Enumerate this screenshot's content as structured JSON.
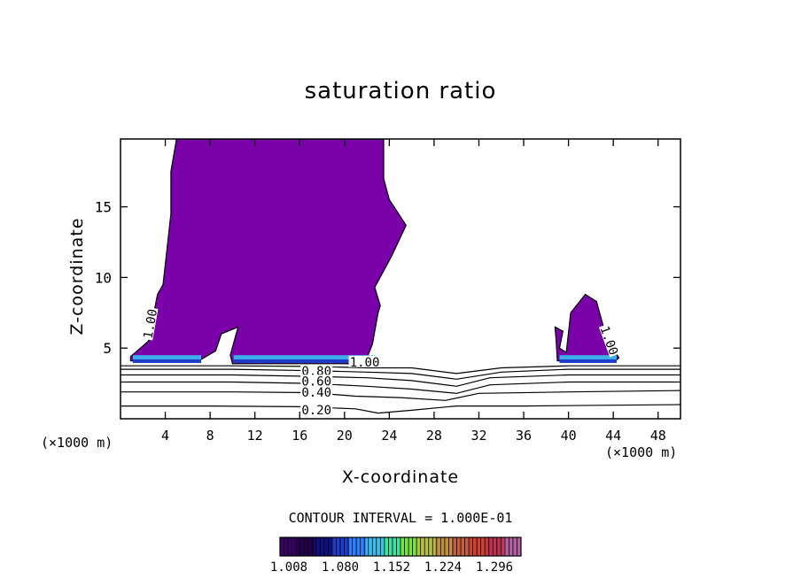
{
  "chart_data": {
    "type": "contour",
    "title": "saturation ratio",
    "xlabel": "X-coordinate",
    "ylabel": "Z-coordinate",
    "x_unit": "(×1000 m)",
    "xlim": [
      0,
      50
    ],
    "ylim": [
      0,
      19.8
    ],
    "x_ticks": [
      4,
      8,
      12,
      16,
      20,
      24,
      28,
      32,
      36,
      40,
      44,
      48
    ],
    "y_ticks": [
      5,
      10,
      15
    ],
    "contour_interval_label": "CONTOUR INTERVAL = 1.000E-01",
    "contour_labels": [
      "1.00",
      "1.00",
      "1.00",
      "0.80",
      "0.60",
      "0.40",
      "0.20"
    ],
    "contour_lines": [
      {
        "label": "0.20",
        "points": [
          [
            0,
            0.9
          ],
          [
            8,
            0.9
          ],
          [
            16,
            0.85
          ],
          [
            21,
            0.7
          ],
          [
            23,
            0.4
          ],
          [
            26,
            0.6
          ],
          [
            30,
            0.9
          ],
          [
            36,
            0.9
          ],
          [
            50,
            1.0
          ]
        ]
      },
      {
        "label": "0.40",
        "points": [
          [
            0,
            1.9
          ],
          [
            10,
            1.9
          ],
          [
            17,
            1.85
          ],
          [
            21,
            1.6
          ],
          [
            25,
            1.5
          ],
          [
            29,
            1.3
          ],
          [
            32,
            1.8
          ],
          [
            40,
            1.9
          ],
          [
            50,
            2.0
          ]
        ]
      },
      {
        "label": "0.60",
        "points": [
          [
            0,
            2.6
          ],
          [
            10,
            2.6
          ],
          [
            17,
            2.5
          ],
          [
            22,
            2.3
          ],
          [
            26,
            2.1
          ],
          [
            30,
            1.8
          ],
          [
            33,
            2.4
          ],
          [
            40,
            2.6
          ],
          [
            50,
            2.6
          ]
        ]
      },
      {
        "label": "0.80",
        "points": [
          [
            0,
            3.1
          ],
          [
            10,
            3.1
          ],
          [
            17,
            3.0
          ],
          [
            22,
            2.9
          ],
          [
            26,
            2.7
          ],
          [
            30,
            2.3
          ],
          [
            33,
            2.9
          ],
          [
            40,
            3.1
          ],
          [
            50,
            3.1
          ]
        ]
      },
      {
        "label": "",
        "points": [
          [
            0,
            3.5
          ],
          [
            10,
            3.5
          ],
          [
            17,
            3.4
          ],
          [
            22,
            3.3
          ],
          [
            26,
            3.2
          ],
          [
            30,
            2.8
          ],
          [
            34,
            3.3
          ],
          [
            40,
            3.5
          ],
          [
            50,
            3.5
          ]
        ]
      },
      {
        "label": "",
        "points": [
          [
            0,
            3.75
          ],
          [
            10,
            3.75
          ],
          [
            17,
            3.7
          ],
          [
            22,
            3.6
          ],
          [
            26,
            3.6
          ],
          [
            30,
            3.2
          ],
          [
            34,
            3.6
          ],
          [
            40,
            3.75
          ],
          [
            50,
            3.75
          ]
        ]
      }
    ],
    "regions": [
      {
        "level": "1.00",
        "points": [
          [
            0.9,
            4.1
          ],
          [
            0.9,
            4.4
          ],
          [
            2.5,
            5.5
          ],
          [
            3.3,
            8.8
          ],
          [
            3.8,
            9.5
          ],
          [
            4.5,
            14.5
          ],
          [
            4.5,
            17.5
          ],
          [
            5.0,
            19.8
          ],
          [
            23.5,
            19.8
          ],
          [
            23.5,
            17.0
          ],
          [
            24.0,
            15.5
          ],
          [
            25.5,
            13.7
          ],
          [
            24.2,
            11.5
          ],
          [
            22.7,
            9.3
          ],
          [
            23.2,
            8.0
          ],
          [
            23.0,
            7.5
          ],
          [
            22.5,
            5.3
          ],
          [
            22.0,
            4.3
          ],
          [
            23.0,
            3.9
          ],
          [
            21.5,
            3.85
          ],
          [
            20.0,
            3.9
          ],
          [
            17.0,
            3.9
          ],
          [
            14.0,
            3.9
          ],
          [
            10.0,
            3.9
          ],
          [
            9.8,
            4.5
          ],
          [
            10.5,
            6.5
          ],
          [
            9.0,
            6.0
          ],
          [
            8.5,
            4.8
          ],
          [
            7.2,
            4.2
          ],
          [
            4.0,
            4.0
          ],
          [
            0.9,
            4.1
          ]
        ]
      },
      {
        "level": "1.00",
        "points": [
          [
            39.0,
            4.1
          ],
          [
            38.9,
            5.5
          ],
          [
            38.8,
            6.5
          ],
          [
            39.5,
            6.2
          ],
          [
            39.2,
            5.0
          ],
          [
            39.8,
            4.7
          ],
          [
            40.2,
            7.5
          ],
          [
            41.5,
            8.8
          ],
          [
            42.5,
            8.3
          ],
          [
            43.2,
            6.3
          ],
          [
            44.0,
            5.0
          ],
          [
            44.5,
            4.3
          ],
          [
            44.0,
            4.0
          ],
          [
            39.0,
            4.1
          ]
        ]
      }
    ],
    "colorbar": {
      "tick_labels": [
        "1.008",
        "1.080",
        "1.152",
        "1.224",
        "1.296"
      ],
      "colors": [
        "#3a0066",
        "#22004d",
        "#101080",
        "#1e3cc8",
        "#2a80ff",
        "#38c0f0",
        "#40e0a0",
        "#78e040",
        "#b8c040",
        "#c09040",
        "#c06040",
        "#d04030",
        "#c03050",
        "#b060a0"
      ]
    },
    "fill_color": "#7a00aa"
  }
}
